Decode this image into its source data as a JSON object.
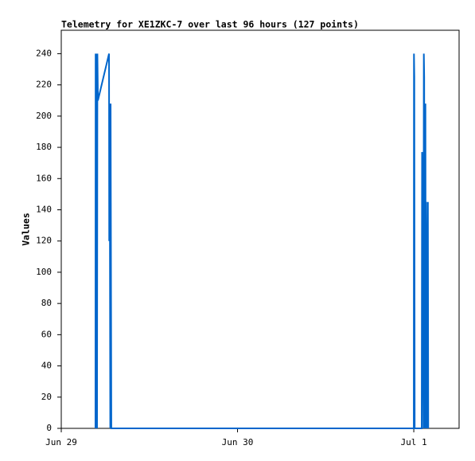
{
  "chart_data": {
    "type": "line",
    "title": "Telemetry for XE1ZKC-7 over last 96 hours (127 points)",
    "y_label": "Values",
    "x": [
      29.194,
      29.195,
      29.199,
      29.201,
      29.203,
      29.205,
      29.208,
      29.271,
      29.272,
      29.275,
      29.278,
      29.28,
      29.284,
      31.0,
      31.001,
      31.003,
      31.005,
      31.045,
      31.047,
      31.05,
      31.055,
      31.057,
      31.059,
      31.061,
      31.063,
      31.066,
      31.068,
      31.07,
      31.074,
      31.08,
      31.082
    ],
    "series": [
      {
        "color": "#0066cc",
        "values": [
          0,
          240,
          0,
          240,
          0,
          240,
          210,
          240,
          120,
          192,
          0,
          208,
          0,
          0,
          240,
          225,
          0,
          0,
          177,
          145,
          0,
          240,
          225,
          0,
          192,
          208,
          0,
          145,
          0,
          145,
          0
        ]
      }
    ],
    "xlim": [
      29,
      31.257
    ],
    "xticks": [
      {
        "value": 29,
        "label": "Jun 29"
      },
      {
        "value": 30,
        "label": "Jun 30"
      },
      {
        "value": 31,
        "label": "Jul 1"
      }
    ],
    "ylim": [
      0,
      255
    ],
    "yticks": [
      0,
      20,
      40,
      60,
      80,
      100,
      120,
      140,
      160,
      180,
      200,
      220,
      240
    ],
    "grid": false
  }
}
